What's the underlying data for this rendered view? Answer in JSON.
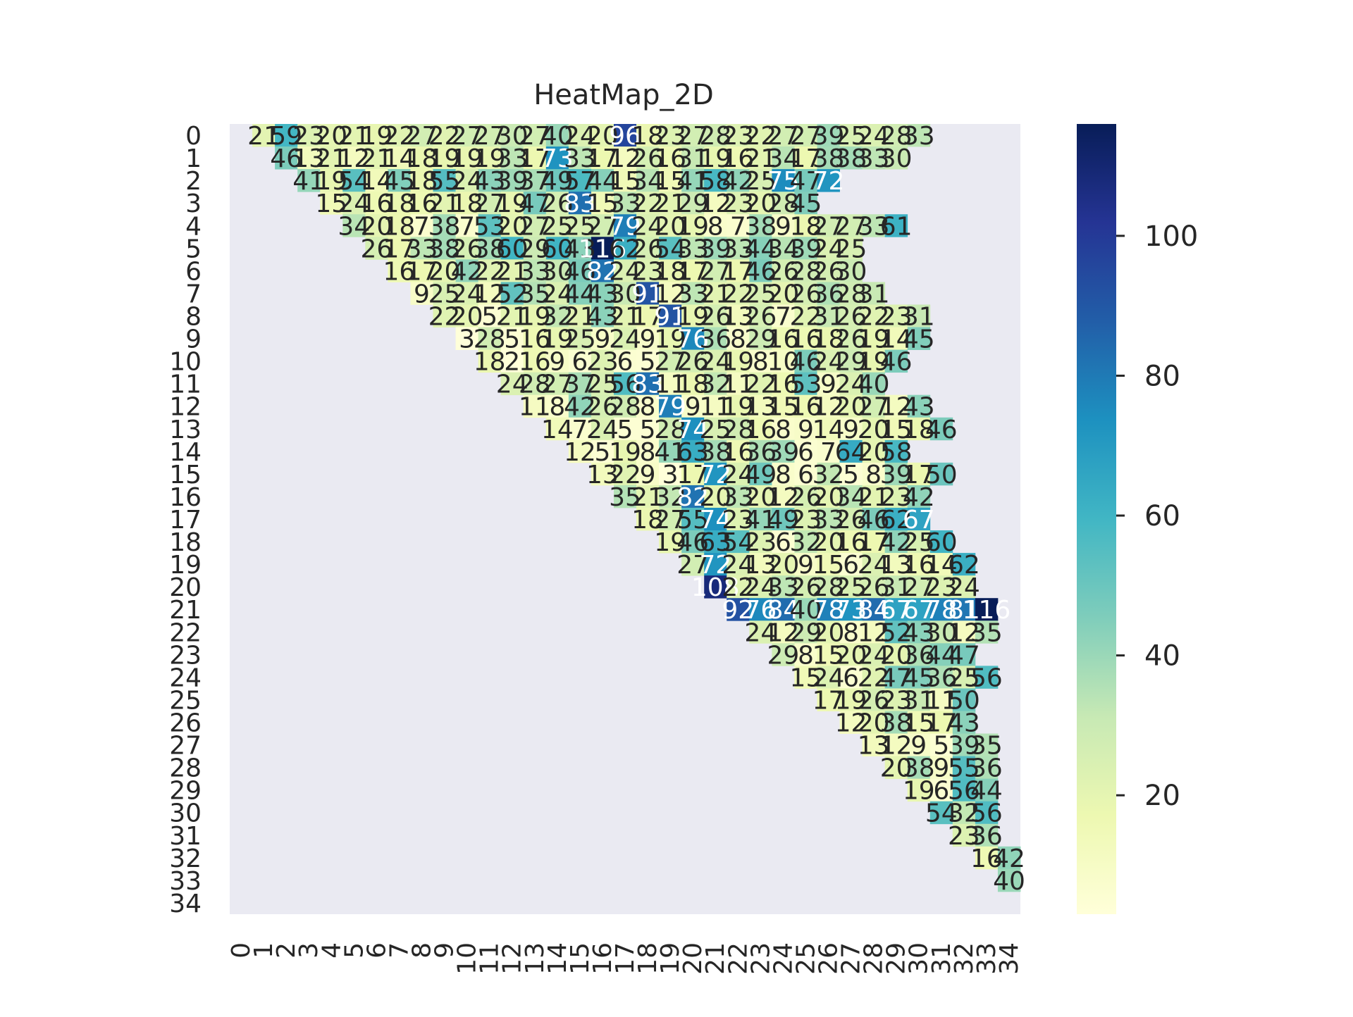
{
  "chart_data": {
    "type": "heatmap",
    "title": "HeatMap_2D",
    "xlabel": "",
    "ylabel": "",
    "x_tick_labels": [
      "0",
      "1",
      "2",
      "3",
      "4",
      "5",
      "6",
      "7",
      "8",
      "9",
      "10",
      "11",
      "12",
      "13",
      "14",
      "15",
      "16",
      "17",
      "18",
      "19",
      "20",
      "21",
      "22",
      "23",
      "24",
      "25",
      "26",
      "27",
      "28",
      "29",
      "30",
      "31",
      "32",
      "33",
      "34"
    ],
    "y_tick_labels": [
      "0",
      "1",
      "2",
      "3",
      "4",
      "5",
      "6",
      "7",
      "8",
      "9",
      "10",
      "11",
      "12",
      "13",
      "14",
      "15",
      "16",
      "17",
      "18",
      "19",
      "20",
      "21",
      "22",
      "23",
      "24",
      "25",
      "26",
      "27",
      "28",
      "29",
      "30",
      "31",
      "32",
      "33",
      "34"
    ],
    "mask": "lower triangle (cells with column < row + 1) are blank",
    "colormap": "YlGnBu",
    "vmin": 3,
    "vmax": 116,
    "colorbar_ticks": [
      20,
      40,
      60,
      80,
      100
    ],
    "colorbar_tick_labels": [
      "20",
      "40",
      "60",
      "80",
      "100"
    ],
    "annotations_shown": true,
    "row_values": [
      [
        21,
        59,
        23,
        20,
        21,
        19,
        22,
        27,
        22,
        27,
        27,
        30,
        27,
        40,
        24,
        20,
        96,
        18,
        23,
        27,
        28,
        23,
        22,
        27,
        27,
        39,
        25,
        24,
        28,
        33
      ],
      [
        46,
        13,
        21,
        12,
        21,
        14,
        18,
        19,
        19,
        19,
        33,
        17,
        73,
        33,
        17,
        12,
        26,
        16,
        31,
        19,
        16,
        21,
        34,
        17,
        38,
        38,
        33,
        30
      ],
      [
        41,
        19,
        54,
        14,
        45,
        18,
        55,
        24,
        43,
        39,
        37,
        49,
        57,
        44,
        15,
        34,
        15,
        41,
        58,
        42,
        25,
        75,
        47,
        72
      ],
      [
        15,
        24,
        16,
        18,
        16,
        21,
        18,
        27,
        19,
        47,
        26,
        83,
        15,
        33,
        22,
        21,
        29,
        12,
        23,
        20,
        28,
        45
      ],
      [
        34,
        20,
        18,
        7,
        38,
        7,
        53,
        20,
        27,
        25,
        25,
        27,
        79,
        24,
        20,
        19,
        8,
        7,
        38,
        9,
        18,
        27,
        27,
        33,
        61
      ],
      [
        26,
        17,
        33,
        38,
        26,
        38,
        60,
        29,
        60,
        43,
        116,
        62,
        26,
        54,
        33,
        39,
        33,
        44,
        34,
        39,
        24,
        25
      ],
      [
        16,
        17,
        20,
        42,
        22,
        21,
        33,
        30,
        46,
        82,
        24,
        23,
        18,
        17,
        27,
        17,
        46,
        26,
        28,
        26,
        30
      ],
      [
        9,
        25,
        24,
        12,
        52,
        35,
        24,
        44,
        43,
        30,
        91,
        12,
        33,
        21,
        22,
        25,
        20,
        26,
        36,
        28,
        31
      ],
      [
        22,
        20,
        5,
        21,
        19,
        32,
        21,
        43,
        21,
        17,
        91,
        19,
        26,
        13,
        26,
        7,
        22,
        31,
        26,
        22,
        23,
        31
      ],
      [
        3,
        28,
        5,
        16,
        19,
        25,
        9,
        24,
        9,
        19,
        76,
        36,
        8,
        29,
        16,
        16,
        18,
        26,
        19,
        14,
        45
      ],
      [
        18,
        2,
        16,
        9,
        6,
        23,
        6,
        5,
        27,
        26,
        24,
        19,
        8,
        10,
        46,
        24,
        29,
        19,
        46
      ],
      [
        24,
        28,
        27,
        37,
        25,
        56,
        83,
        11,
        18,
        32,
        11,
        22,
        16,
        53,
        9,
        24,
        40
      ],
      [
        11,
        8,
        42,
        26,
        28,
        8,
        79,
        9,
        11,
        19,
        13,
        15,
        16,
        12,
        20,
        27,
        12,
        43
      ],
      [
        14,
        7,
        24,
        5,
        5,
        28,
        74,
        25,
        28,
        16,
        8,
        9,
        14,
        9,
        20,
        15,
        18,
        46
      ],
      [
        12,
        5,
        19,
        8,
        41,
        63,
        38,
        16,
        36,
        39,
        6,
        7,
        64,
        20,
        58
      ],
      [
        13,
        22,
        9,
        3,
        17,
        72,
        24,
        49,
        8,
        6,
        32,
        5,
        8,
        39,
        17,
        50
      ],
      [
        35,
        21,
        32,
        82,
        20,
        33,
        20,
        12,
        26,
        20,
        34,
        21,
        23,
        42
      ],
      [
        18,
        27,
        55,
        74,
        23,
        41,
        49,
        23,
        33,
        26,
        46,
        62,
        67
      ],
      [
        19,
        46,
        63,
        54,
        23,
        6,
        32,
        20,
        16,
        17,
        42,
        25,
        60
      ],
      [
        27,
        72,
        24,
        13,
        20,
        9,
        15,
        6,
        24,
        13,
        16,
        14,
        62
      ],
      [
        108,
        22,
        24,
        33,
        26,
        28,
        25,
        26,
        31,
        27,
        23,
        24
      ],
      [
        92,
        76,
        84,
        40,
        78,
        73,
        84,
        67,
        67,
        78,
        81,
        116
      ],
      [
        24,
        12,
        29,
        20,
        8,
        12,
        52,
        43,
        30,
        12,
        35
      ],
      [
        29,
        8,
        15,
        20,
        24,
        20,
        36,
        44,
        47
      ],
      [
        15,
        24,
        6,
        22,
        47,
        45,
        36,
        25,
        56
      ],
      [
        17,
        19,
        26,
        23,
        31,
        11,
        50
      ],
      [
        12,
        20,
        38,
        15,
        17,
        43
      ],
      [
        13,
        12,
        9,
        5,
        39,
        35
      ],
      [
        20,
        38,
        9,
        55,
        36
      ],
      [
        19,
        6,
        56,
        44
      ],
      [
        54,
        32,
        56
      ],
      [
        23,
        36
      ],
      [
        16,
        42
      ],
      [
        40
      ],
      []
    ]
  }
}
